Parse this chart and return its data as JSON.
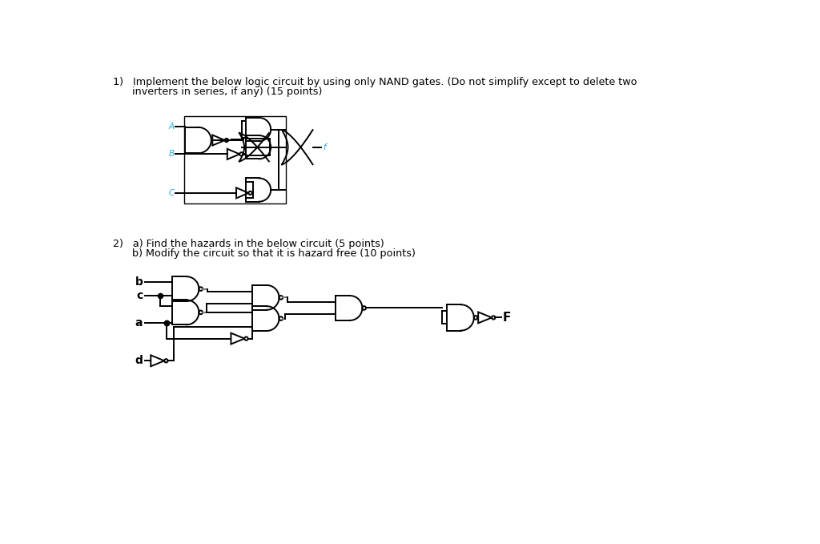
{
  "bg_color": "#ffffff",
  "black": "#000000",
  "cyan": "#29abe2",
  "gray_wire": "#808080",
  "title1": "1)   Implement the below logic circuit by using only NAND gates. (Do not simplify except to delete two",
  "title1b": "      inverters in series, if any) (15 points)",
  "title2a": "2)   a) Find the hazards in the below circuit (5 points)",
  "title2b": "      b) Modify the circuit so that it is hazard free (10 points)",
  "lw": 1.4,
  "glw": 1.4
}
